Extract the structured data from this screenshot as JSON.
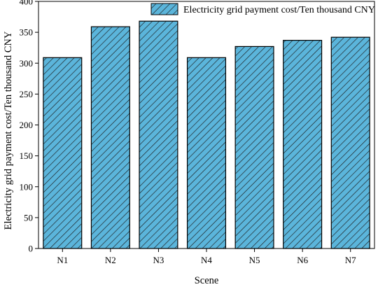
{
  "chart_data": {
    "type": "bar",
    "title": "",
    "xlabel": "Scene",
    "ylabel": "Electricity grid payment cost/Ten thousand CNY",
    "categories": [
      "N1",
      "N2",
      "N3",
      "N4",
      "N5",
      "N6",
      "N7"
    ],
    "series": [
      {
        "name": "Electricity grid payment cost/Ten thousand CNY",
        "values": [
          309,
          359,
          368,
          309,
          327,
          337,
          342
        ]
      }
    ],
    "ylim": [
      0,
      400
    ],
    "yticks": [
      "0",
      "50",
      "100",
      "150",
      "200",
      "250",
      "300",
      "350",
      "400"
    ],
    "grid": false,
    "legend_position": "top-right",
    "bar_fill": "#5bb5db",
    "hatch": "diagonal"
  }
}
